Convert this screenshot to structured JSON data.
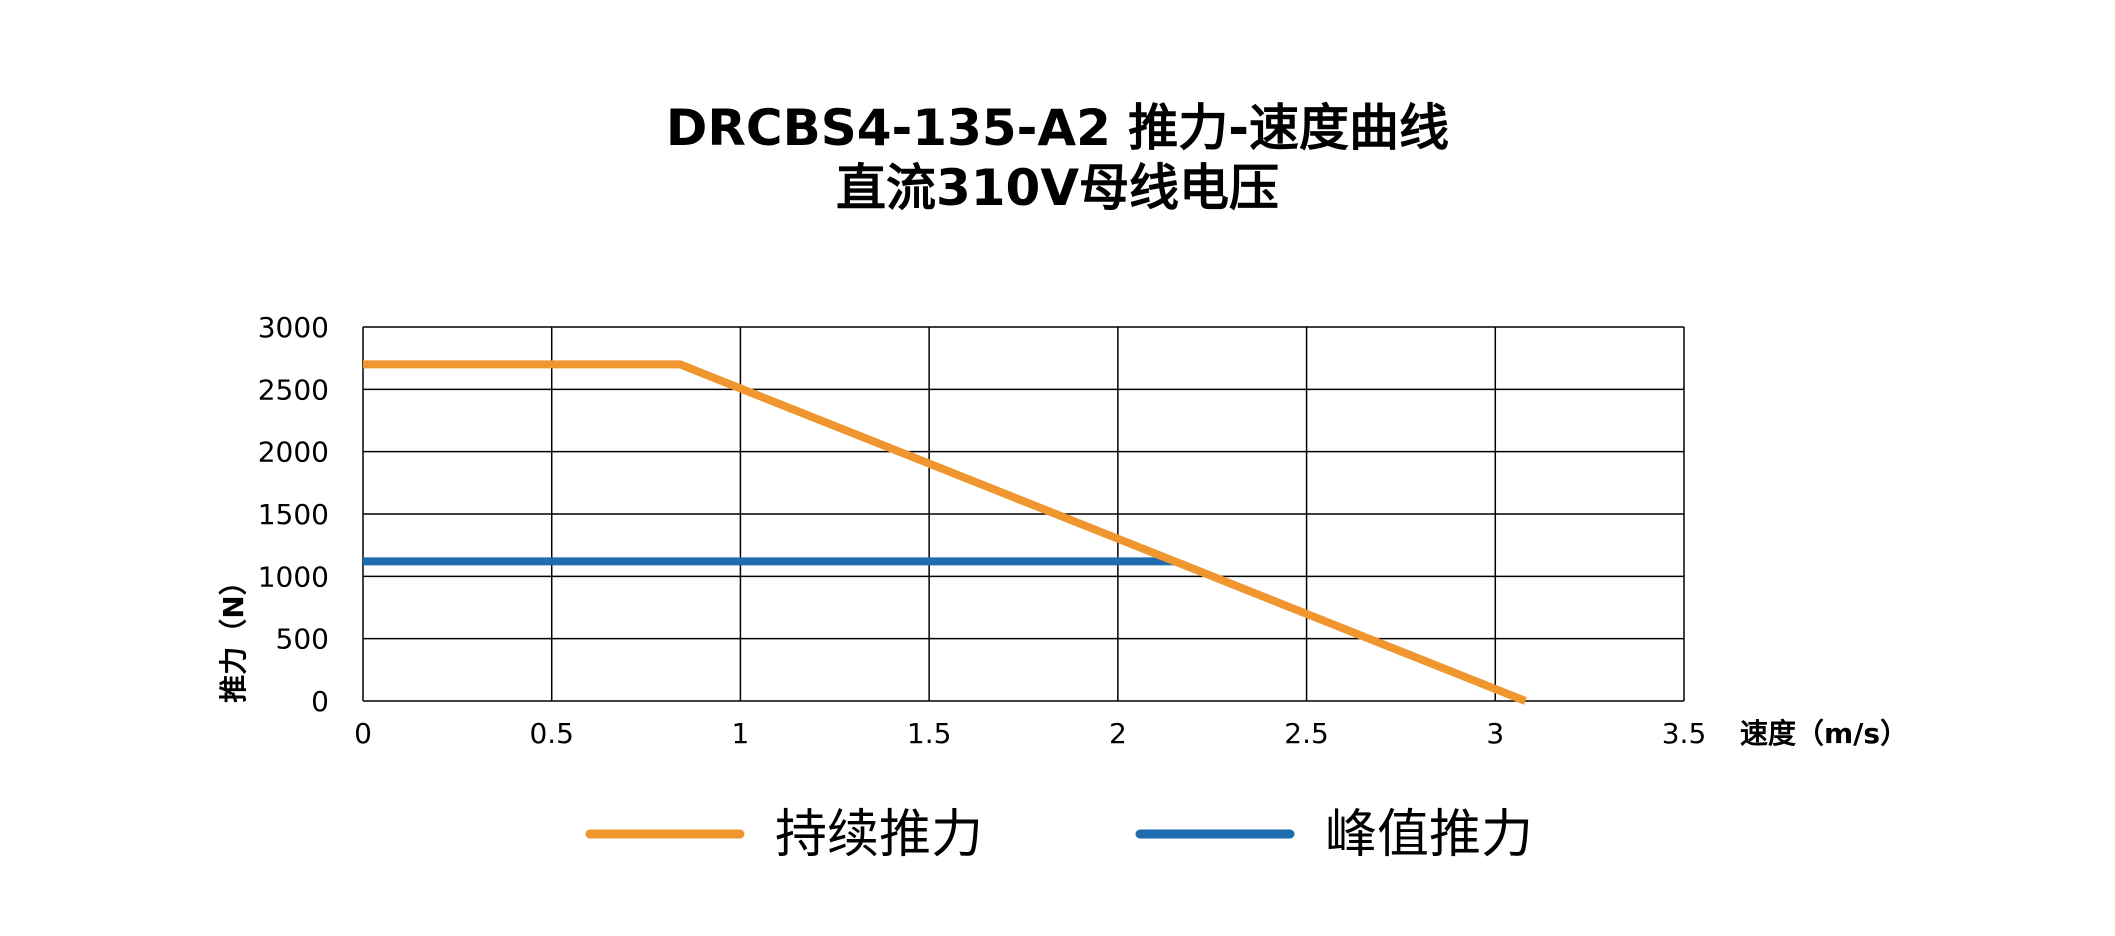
{
  "chart_data": {
    "type": "line",
    "title": "DRCBS4-135-A2 推力-速度曲线",
    "subtitle": "直流310V母线电压",
    "xlabel": "速度（m/s）",
    "ylabel": "推力（N）",
    "xlim": [
      0,
      3.5
    ],
    "ylim": [
      0,
      3000
    ],
    "xticks": [
      0,
      0.5,
      1,
      1.5,
      2,
      2.5,
      3,
      3.5
    ],
    "xtick_labels": [
      "0",
      "0.5",
      "1",
      "1.5",
      "2",
      "2.5",
      "3",
      "3.5"
    ],
    "yticks": [
      0,
      500,
      1000,
      1500,
      2000,
      2500,
      3000
    ],
    "ytick_labels": [
      "0",
      "500",
      "1000",
      "1500",
      "2000",
      "2500",
      "3000"
    ],
    "grid": true,
    "legend_position": "bottom",
    "series": [
      {
        "name": "持续推力",
        "color": "#F0962F",
        "x": [
          0,
          0.84,
          3.08
        ],
        "y": [
          2700,
          2700,
          0
        ]
      },
      {
        "name": "峰值推力",
        "color": "#1E6BAF",
        "x": [
          0,
          2.15
        ],
        "y": [
          1120,
          1120
        ]
      }
    ]
  }
}
